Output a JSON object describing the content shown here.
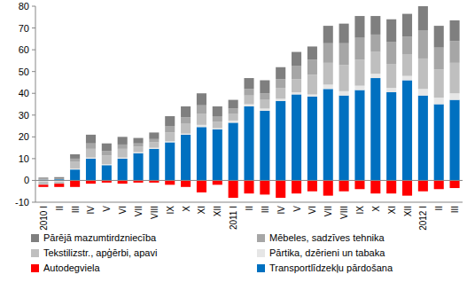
{
  "chart_data": {
    "type": "bar",
    "stacked": true,
    "grid": false,
    "categories": [
      "2010 I",
      "II",
      "III",
      "IV",
      "V",
      "VI",
      "VII",
      "VIII",
      "IX",
      "X",
      "XI",
      "XII",
      "2011 I",
      "II",
      "III",
      "IV",
      "V",
      "VI",
      "VII",
      "VIII",
      "IX",
      "X",
      "XI",
      "XII",
      "2012 I",
      "II",
      "III"
    ],
    "ylim": [
      -10,
      80
    ],
    "yticks": [
      -10,
      0,
      10,
      20,
      30,
      40,
      50,
      60,
      70,
      80
    ],
    "series": [
      {
        "name": "Transportlīdzekļu pārdošana",
        "color": "#0070c0",
        "values": [
          0.3,
          0.5,
          5,
          10,
          7,
          10,
          12.5,
          14.5,
          17.5,
          21,
          24.5,
          23.5,
          26.5,
          34,
          32,
          36.5,
          39.5,
          38.5,
          42,
          39,
          41.5,
          47,
          40.5,
          46,
          39,
          35,
          37
        ]
      },
      {
        "name": "Pārtika, dzērieni un tabaka",
        "color": "#e6e6e6",
        "values": [
          -0.5,
          -0.5,
          0.5,
          0.5,
          0.5,
          0.5,
          0.5,
          0.5,
          0.5,
          0.5,
          1,
          0.5,
          1,
          1,
          1,
          1,
          1,
          1,
          2,
          2,
          2,
          2,
          2,
          2,
          3,
          3,
          3
        ]
      },
      {
        "name": "Tekstilizstr., apģērbi, apavi",
        "color": "#bfbfbf",
        "values": [
          -1.5,
          -1,
          3,
          4,
          4,
          4,
          2.5,
          2.5,
          4,
          4.5,
          5,
          3,
          3,
          4,
          4,
          5,
          6,
          9,
          10,
          12,
          12,
          10,
          11,
          10,
          14,
          13,
          14
        ]
      },
      {
        "name": "Mēbeles, sadzīves tehnika",
        "color": "#a6a6a6",
        "values": [
          0.5,
          0.5,
          1.5,
          2.5,
          2,
          2,
          1.5,
          1.5,
          3,
          3,
          4,
          2.5,
          2.5,
          3,
          3,
          4,
          6,
          7,
          9,
          10,
          10,
          8,
          10,
          8,
          13,
          10,
          10
        ]
      },
      {
        "name": "Pārējā mazumtirdzniecība",
        "color": "#7f7f7f",
        "values": [
          0.5,
          0.5,
          2,
          4,
          3.5,
          3.5,
          2.5,
          3,
          4.5,
          5,
          5.5,
          4.5,
          4,
          5,
          6,
          5.5,
          6.5,
          6,
          8,
          9,
          10,
          8.5,
          10.5,
          10.5,
          11,
          10,
          9.5
        ]
      },
      {
        "name": "Autodegviela",
        "color": "#ff0000",
        "values": [
          -1,
          -1.5,
          -3,
          -1.5,
          -1,
          -1.5,
          -1,
          -1,
          -2,
          -3,
          -5.5,
          -2,
          -8,
          -6,
          -6.5,
          -8,
          -6,
          -5,
          -7,
          -5,
          -4,
          -6,
          -6,
          -7,
          -5,
          -4,
          -3.5
        ]
      }
    ]
  }
}
